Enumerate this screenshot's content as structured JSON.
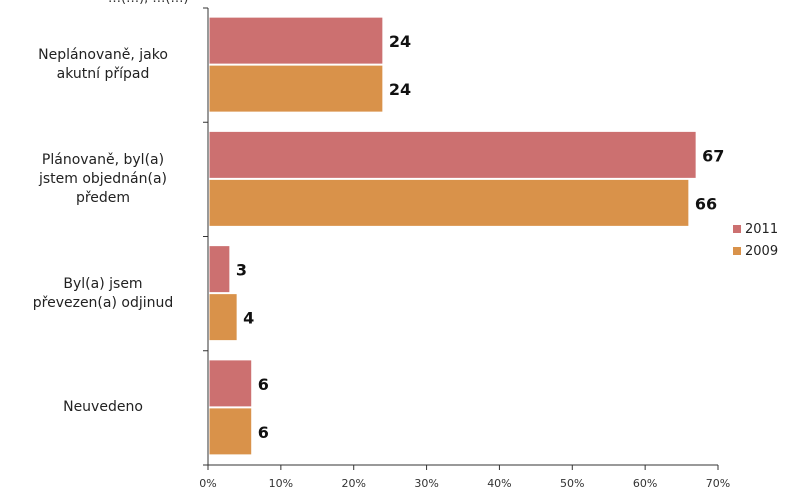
{
  "chart_data": {
    "type": "bar",
    "orientation": "horizontal",
    "title_partial": "…(…), …(…)",
    "categories": [
      [
        "Neplánovaně, jako",
        "akutní případ"
      ],
      [
        "Plánovaně, byl(a)",
        "jstem objednán(a)",
        "předem"
      ],
      [
        "Byl(a) jsem",
        "převezen(a) odjinud"
      ],
      [
        "Neuvedeno"
      ]
    ],
    "series": [
      {
        "name": "2011",
        "color": "#cc7070",
        "values": [
          24,
          67,
          3,
          6
        ]
      },
      {
        "name": "2009",
        "color": "#d9924a",
        "values": [
          24,
          66,
          4,
          6
        ]
      }
    ],
    "xlim": [
      0,
      70
    ],
    "xticks": [
      "0%",
      "10%",
      "20%",
      "30%",
      "40%",
      "50%",
      "60%",
      "70%"
    ],
    "legend_position": "right",
    "grid": false
  }
}
